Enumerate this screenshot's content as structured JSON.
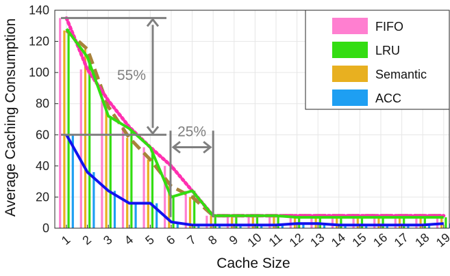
{
  "chart_data": {
    "type": "bar",
    "xlabel": "Cache Size",
    "ylabel": "Average Caching Consumption",
    "ylim": [
      0,
      140
    ],
    "yticks": [
      0,
      20,
      40,
      60,
      80,
      100,
      120,
      140
    ],
    "categories": [
      "1",
      "2",
      "3",
      "4",
      "5",
      "6",
      "7",
      "8",
      "9",
      "10",
      "11",
      "12",
      "13",
      "14",
      "15",
      "16",
      "17",
      "18",
      "19"
    ],
    "grid": true,
    "legend_position": "top-right",
    "series": [
      {
        "name": "FIFO",
        "color": "#ff7fd0",
        "line_color": "#ff2fb0",
        "line_style": "dotted",
        "values": [
          135,
          102,
          82,
          65,
          52,
          40,
          24,
          8,
          8,
          8,
          8,
          8,
          8,
          8,
          8,
          8,
          8,
          8,
          8
        ]
      },
      {
        "name": "LRU",
        "color": "#33dd11",
        "line_color": "#33dd11",
        "line_style": "solid",
        "values": [
          128,
          110,
          72,
          64,
          52,
          20,
          24,
          8,
          8,
          8,
          8,
          7,
          7,
          7,
          7,
          7,
          7,
          7,
          7
        ]
      },
      {
        "name": "Semantic",
        "color": "#e8b020",
        "line_color": "#a8823a",
        "line_style": "dashed",
        "values": [
          127,
          115,
          78,
          58,
          44,
          27,
          20,
          8,
          8,
          8,
          8,
          8,
          8,
          8,
          8,
          8,
          8,
          8,
          8
        ]
      },
      {
        "name": "ACC",
        "color": "#1e9ff2",
        "line_color": "#1111ee",
        "line_style": "solid",
        "values": [
          60,
          36,
          24,
          16,
          16,
          4,
          2,
          2,
          2,
          2,
          2,
          3,
          3,
          2,
          2,
          2,
          2,
          2,
          3
        ]
      }
    ],
    "annotations": [
      {
        "text": "55%"
      },
      {
        "text": "25%"
      }
    ]
  }
}
